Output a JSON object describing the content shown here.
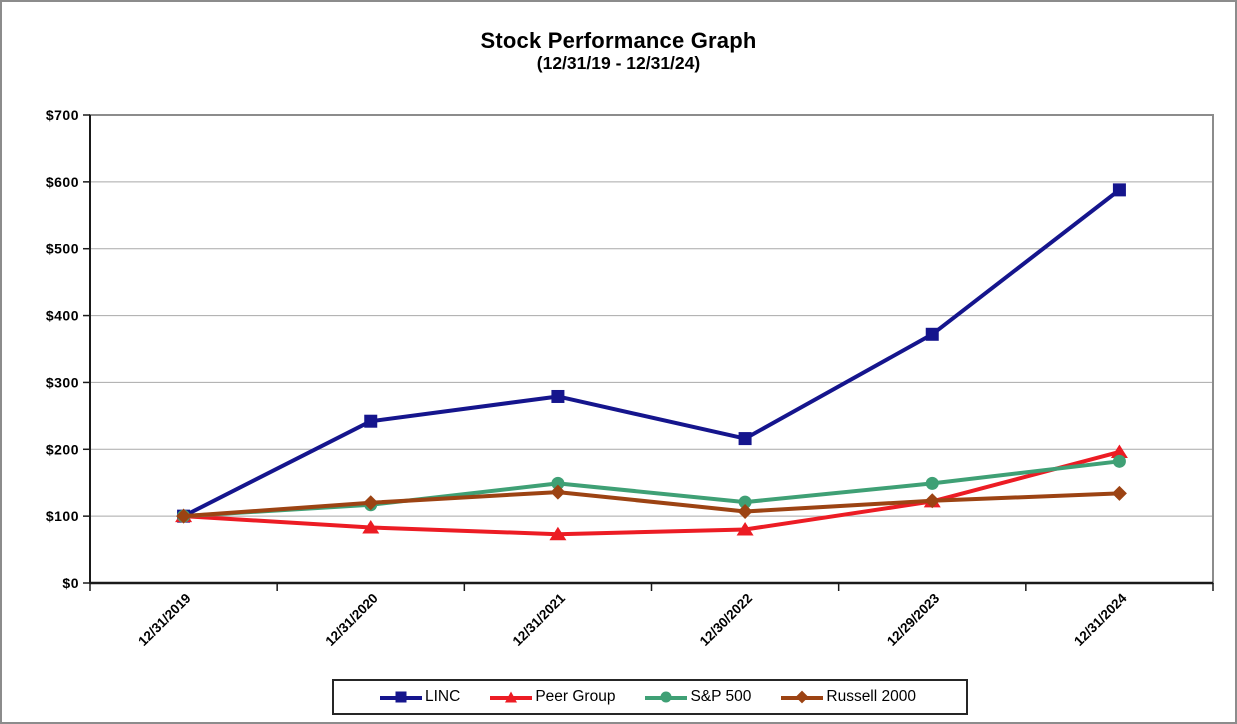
{
  "title": "Stock Performance Graph",
  "subtitle": "(12/31/19 - 12/31/24)",
  "colors": {
    "background": "#FFFFFF",
    "outer_border": "#8C8C8C",
    "plot_border": "#8C8C8C",
    "axis_line": "#1A1A1A",
    "gridline": "#A9A9A9",
    "tick": "#1A1A1A",
    "text": "#000000",
    "legend_border": "#262626"
  },
  "chart_data": {
    "type": "line",
    "title": "Stock Performance Graph",
    "subtitle": "(12/31/19 - 12/31/24)",
    "categories": [
      "12/31/2019",
      "12/31/2020",
      "12/31/2021",
      "12/30/2022",
      "12/29/2023",
      "12/31/2024"
    ],
    "series": [
      {
        "name": "LINC",
        "color": "#15158D",
        "marker": "square",
        "values": [
          100,
          242,
          279,
          216,
          372,
          588
        ]
      },
      {
        "name": "Peer Group",
        "color": "#EC1C24",
        "marker": "triangle",
        "values": [
          100,
          83,
          73,
          80,
          122,
          196
        ]
      },
      {
        "name": "S&P 500",
        "color": "#3FA075",
        "marker": "circle",
        "values": [
          100,
          117,
          149,
          121,
          149,
          182
        ]
      },
      {
        "name": "Russell 2000",
        "color": "#9C4313",
        "marker": "diamond",
        "values": [
          100,
          120,
          136,
          107,
          123,
          134
        ]
      }
    ],
    "xlabel": "",
    "ylabel": "",
    "ylim": [
      0,
      700
    ],
    "ytick_step": 100,
    "ytick_labels": [
      "$0",
      "$100",
      "$200",
      "$300",
      "$400",
      "$500",
      "$600",
      "$700"
    ],
    "grid": true,
    "legend_position": "bottom",
    "x_axis_type": "category"
  }
}
